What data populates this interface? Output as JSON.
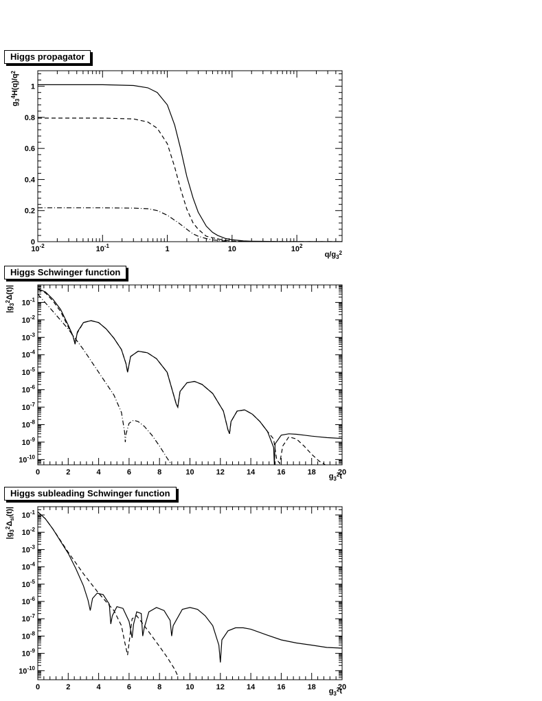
{
  "chart_data": [
    {
      "type": "line",
      "title": "Higgs propagator",
      "xlabel": "q/g3^2",
      "ylabel": "g3^4 H(q)/q^2",
      "xscale": "log",
      "xlim": [
        0.01,
        500
      ],
      "ylim": [
        0,
        1.1
      ],
      "x_tick_labels": [
        "10^-2",
        "10^-1",
        "1",
        "10",
        "10^2"
      ],
      "y_tick_labels": [
        "0",
        "0.2",
        "0.4",
        "0.6",
        "0.8",
        "1"
      ],
      "grid": false,
      "series": [
        {
          "style": "solid",
          "x": [
            0.01,
            0.1,
            0.3,
            0.5,
            0.7,
            1,
            1.3,
            1.6,
            2,
            2.5,
            3,
            4,
            5,
            6,
            8,
            10,
            15,
            20,
            50,
            100,
            500
          ],
          "y": [
            1.01,
            1.01,
            1.005,
            0.99,
            0.96,
            0.88,
            0.75,
            0.6,
            0.42,
            0.28,
            0.19,
            0.1,
            0.06,
            0.04,
            0.02,
            0.013,
            0.005,
            0.003,
            0.001,
            0.0005,
            0.0001
          ]
        },
        {
          "style": "dashed",
          "x": [
            0.01,
            0.1,
            0.3,
            0.5,
            0.7,
            1,
            1.3,
            1.6,
            2,
            2.5,
            3,
            4,
            5,
            6,
            8,
            10,
            15,
            20,
            50,
            100,
            500
          ],
          "y": [
            0.795,
            0.795,
            0.79,
            0.77,
            0.73,
            0.63,
            0.48,
            0.34,
            0.21,
            0.12,
            0.08,
            0.035,
            0.025,
            0.018,
            0.008,
            0.004,
            0.002,
            0.001,
            0.0005,
            0.0002,
            0.0001
          ]
        },
        {
          "style": "dash-dot",
          "x": [
            0.01,
            0.1,
            0.3,
            0.5,
            0.7,
            1,
            1.5,
            2,
            2.5,
            3,
            4,
            5,
            6,
            8,
            10,
            15,
            20,
            50,
            100,
            500
          ],
          "y": [
            0.218,
            0.218,
            0.216,
            0.212,
            0.2,
            0.17,
            0.12,
            0.08,
            0.05,
            0.035,
            0.02,
            0.012,
            0.008,
            0.004,
            0.002,
            0.001,
            0.0005,
            0.0002,
            0.0001,
            5e-05
          ]
        }
      ]
    },
    {
      "type": "line",
      "title": "Higgs Schwinger function",
      "xlabel": "g3^2 t",
      "ylabel": "|g3^2 Δ(t)|",
      "yscale": "log",
      "xlim": [
        0,
        20
      ],
      "ylim": [
        5e-11,
        1
      ],
      "x_tick_labels": [
        "0",
        "2",
        "4",
        "6",
        "8",
        "10",
        "12",
        "14",
        "16",
        "18",
        "20"
      ],
      "y_tick_labels": [
        "10^-10",
        "10^-9",
        "10^-8",
        "10^-7",
        "10^-6",
        "10^-5",
        "10^-4",
        "10^-3",
        "10^-2",
        "10^-1"
      ],
      "grid": false,
      "series": [
        {
          "style": "solid",
          "x": [
            0,
            0.5,
            1,
            1.5,
            2,
            2.3,
            2.45,
            2.6,
            3,
            3.5,
            4,
            4.5,
            5,
            5.5,
            5.8,
            5.9,
            6.1,
            6.6,
            7.2,
            7.8,
            8.5,
            9.1,
            9.2,
            9.35,
            9.8,
            10.3,
            10.8,
            11.5,
            12.2,
            12.5,
            12.6,
            12.7,
            13.1,
            13.6,
            14.1,
            14.6,
            15.1,
            15.5,
            15.55,
            15.6,
            16,
            16.5,
            17,
            17.5,
            18,
            18.5,
            19,
            19.5,
            20
          ],
          "y": [
            0.6,
            0.4,
            0.15,
            0.04,
            0.005,
            0.0013,
            0.0004,
            0.002,
            0.007,
            0.009,
            0.007,
            0.003,
            0.0009,
            0.0002,
            3e-05,
            1e-05,
            8e-05,
            0.00016,
            0.00013,
            6e-05,
            1e-05,
            1.5e-07,
            1e-07,
            8e-07,
            2.5e-06,
            3e-06,
            2e-06,
            6e-07,
            6e-08,
            5e-09,
            3e-09,
            1.5e-08,
            6e-08,
            7e-08,
            4e-08,
            1.5e-08,
            4e-09,
            5e-10,
            5e-11,
            8e-10,
            2.5e-09,
            3e-09,
            2.8e-09,
            2.5e-09,
            2.2e-09,
            2e-09,
            1.8e-09,
            1.7e-09,
            1.6e-09
          ]
        },
        {
          "style": "dashed",
          "x": [
            0,
            0.5,
            1,
            1.5,
            2,
            2.3,
            2.45,
            2.6,
            3,
            3.5,
            4,
            4.5,
            5,
            5.5,
            5.8,
            5.9,
            6.1,
            6.6,
            7.2,
            7.8,
            8.5,
            9.1,
            9.2,
            9.35,
            9.8,
            10.3,
            10.8,
            11.5,
            12.2,
            12.5,
            12.6,
            12.7,
            13.1,
            13.6,
            14.1,
            14.6,
            15.1,
            15.5,
            15.7,
            15.9,
            16.1,
            16.5,
            17,
            17.5,
            18,
            18.5,
            18.9
          ],
          "y": [
            0.55,
            0.35,
            0.12,
            0.03,
            0.004,
            0.0012,
            0.0005,
            0.0018,
            0.007,
            0.009,
            0.007,
            0.003,
            0.0009,
            0.0002,
            3e-05,
            1e-05,
            8e-05,
            0.00016,
            0.00013,
            6e-05,
            1e-05,
            1.5e-07,
            1e-07,
            8e-07,
            2.5e-06,
            3e-06,
            2e-06,
            6e-07,
            6e-08,
            5e-09,
            3e-09,
            1.5e-08,
            6e-08,
            7e-08,
            4e-08,
            1.5e-08,
            4e-09,
            1.5e-09,
            1e-10,
            6e-11,
            6e-10,
            2e-09,
            1.5e-09,
            6e-10,
            2e-10,
            8e-11,
            5e-11
          ]
        },
        {
          "style": "dash-dot",
          "x": [
            0,
            0.3,
            1,
            2,
            3,
            4,
            5,
            5.5,
            5.7,
            5.75,
            5.8,
            6,
            6.3,
            6.6,
            7,
            7.5,
            8,
            8.5,
            8.8
          ],
          "y": [
            0.3,
            0.15,
            0.03,
            0.003,
            0.0002,
            1e-05,
            5e-07,
            5e-08,
            4e-09,
            1e-09,
            3e-09,
            1.2e-08,
            1.8e-08,
            1.5e-08,
            8e-09,
            2.5e-09,
            6e-10,
            1.2e-10,
            5e-11
          ]
        }
      ]
    },
    {
      "type": "line",
      "title": "Higgs subleading Schwinger function",
      "xlabel": "g3^2 t",
      "ylabel": "|g3^2 Δsl(t)|",
      "yscale": "log",
      "xlim": [
        0,
        20
      ],
      "ylim": [
        3e-11,
        0.3
      ],
      "x_tick_labels": [
        "0",
        "2",
        "4",
        "6",
        "8",
        "10",
        "12",
        "14",
        "16",
        "18",
        "20"
      ],
      "y_tick_labels": [
        "10^-10",
        "10^-9",
        "10^-8",
        "10^-7",
        "10^-6",
        "10^-5",
        "10^-4",
        "10^-3",
        "10^-2",
        "10^-1"
      ],
      "grid": false,
      "series": [
        {
          "style": "solid",
          "x": [
            0,
            0.5,
            1,
            1.5,
            2,
            2.5,
            3,
            3.3,
            3.45,
            3.6,
            3.9,
            4.3,
            4.7,
            4.8,
            4.9,
            5.2,
            5.6,
            6,
            6.2,
            6.3,
            6.5,
            6.8,
            6.9,
            7,
            7.3,
            7.8,
            8.3,
            8.7,
            8.8,
            8.9,
            9.5,
            10,
            10.5,
            11,
            11.5,
            11.9,
            12,
            12.1,
            12.5,
            13,
            13.5,
            14,
            15,
            16,
            17,
            18,
            19,
            20
          ],
          "y": [
            0.15,
            0.06,
            0.015,
            0.003,
            0.0006,
            8e-05,
            8e-06,
            1.2e-06,
            3e-07,
            1.5e-06,
            3e-06,
            2.5e-06,
            7e-07,
            5e-08,
            1.5e-07,
            5e-07,
            4e-07,
            7e-08,
            8e-09,
            5e-08,
            2.5e-07,
            2e-07,
            1e-08,
            3e-08,
            2.5e-07,
            4.5e-07,
            3e-07,
            8e-08,
            1e-08,
            4e-08,
            3.5e-07,
            4.5e-07,
            3.5e-07,
            1.5e-07,
            4e-08,
            3e-09,
            3e-10,
            6e-09,
            2e-08,
            3e-08,
            3e-08,
            2.5e-08,
            1.2e-08,
            6e-09,
            4e-09,
            3e-09,
            2.2e-09,
            2e-09
          ]
        },
        {
          "style": "dashed",
          "x": [
            0,
            0.5,
            1,
            2,
            3,
            4,
            5,
            5.5,
            5.7,
            5.9,
            6.2,
            6.5,
            7,
            7.5,
            8,
            8.5,
            9,
            9.2
          ],
          "y": [
            0.15,
            0.06,
            0.015,
            0.0007,
            4e-05,
            3e-06,
            3e-07,
            4e-08,
            5e-09,
            8e-10,
            1e-07,
            1.5e-07,
            4e-08,
            1e-08,
            2.5e-09,
            6e-10,
            1.2e-10,
            5e-11
          ]
        }
      ]
    }
  ]
}
